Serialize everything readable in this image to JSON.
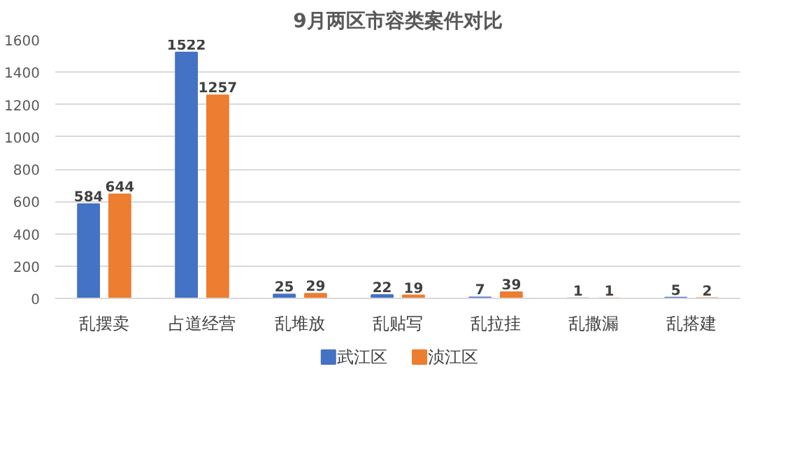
{
  "chart_data": {
    "type": "bar",
    "title": "9月两区市容类案件对比",
    "categories": [
      "乱摆卖",
      "占道经营",
      "乱堆放",
      "乱贴写",
      "乱拉挂",
      "乱撒漏",
      "乱搭建"
    ],
    "series": [
      {
        "name": "武江区",
        "color": "#4472c4",
        "values": [
          584,
          1522,
          25,
          22,
          7,
          1,
          5
        ]
      },
      {
        "name": "浈江区",
        "color": "#ed7d31",
        "values": [
          644,
          1257,
          29,
          19,
          39,
          1,
          2
        ]
      }
    ],
    "ylim": [
      0,
      1600
    ],
    "yticks": [
      0,
      200,
      400,
      600,
      800,
      1000,
      1200,
      1400,
      1600
    ],
    "grid": "y",
    "legend": "bottom",
    "data_labels": true
  }
}
